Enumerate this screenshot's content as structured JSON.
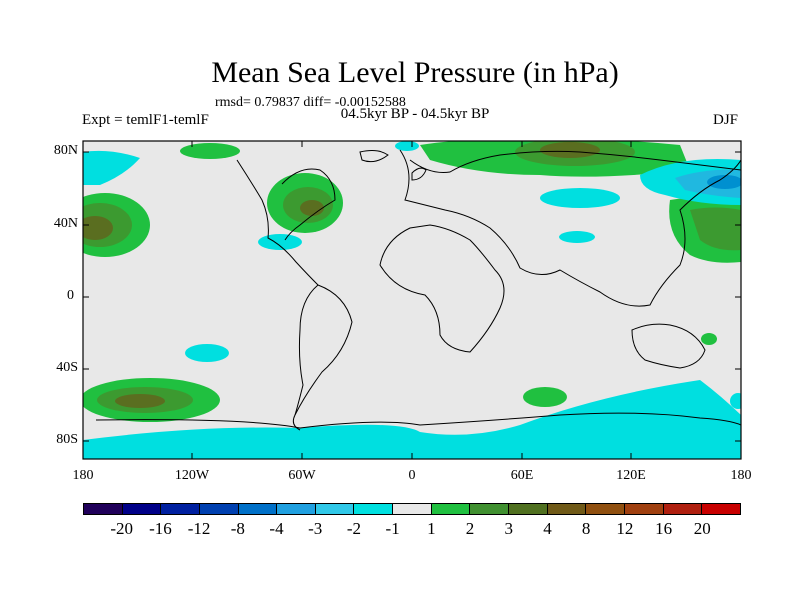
{
  "title": "Mean Sea Level Pressure (in hPa)",
  "stats": "rmsd= 0.79837 diff= -0.00152588",
  "subtitle": "04.5kyr BP - 04.5kyr BP",
  "expt": "Expt = temlF1-temlF",
  "season": "DJF",
  "lat_labels": [
    "80N",
    "40N",
    "0",
    "40S",
    "80S"
  ],
  "lon_labels": [
    "180",
    "120W",
    "60W",
    "0",
    "60E",
    "120E",
    "180"
  ],
  "colorbar": {
    "colors": [
      "#20005a",
      "#000088",
      "#0020a0",
      "#0040b0",
      "#0070c8",
      "#20a0e0",
      "#30c8e8",
      "#00e0e0",
      "#e8e8e8",
      "#20c040",
      "#409030",
      "#507020",
      "#705a18",
      "#905010",
      "#a04010",
      "#b02010",
      "#c80000"
    ],
    "labels": [
      "-20",
      "-16",
      "-12",
      "-8",
      "-4",
      "-3",
      "-2",
      "-1",
      "1",
      "2",
      "3",
      "4",
      "8",
      "12",
      "16",
      "20"
    ]
  },
  "legend_colors": {
    "background": "#e8e8e8",
    "neg1": "#00dfe0",
    "neg2": "#20b8e0",
    "neg3": "#0090d0",
    "pos1": "#20c040",
    "pos2": "#3c9a30",
    "pos3": "#5a6e20"
  }
}
